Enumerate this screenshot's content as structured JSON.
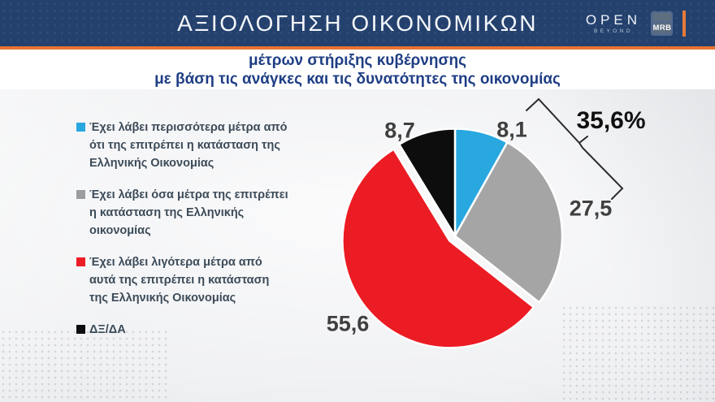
{
  "header": {
    "title": "ΑΞΙΟΛΟΓΗΣΗ ΟΙΚΟΝΟΜΙΚΩΝ",
    "open_logo": {
      "main": "OPEN",
      "sub": "BEYOND"
    },
    "mrb_logo": "MRB",
    "bar_color": "#24416e",
    "accent_orange": "#e87333"
  },
  "subtitle": {
    "line1": "μέτρων στήριξης κυβέρνησης",
    "line2": "με βάση τις ανάγκες και τις δυνατότητες της οικονομίας",
    "color": "#1f3e85"
  },
  "legend": {
    "items": [
      {
        "color": "#29a8e0",
        "lines": [
          "Έχει λάβει περισσότερα μέτρα από",
          "ότι της επιτρέπει η κατάσταση της",
          "Ελληνικής Οικονομίας"
        ]
      },
      {
        "color": "#9b9d9f",
        "lines": [
          "Έχει λάβει όσα μέτρα της επιτρέπει",
          "η κατάσταση της Ελληνικής",
          "οικονομίας"
        ]
      },
      {
        "color": "#ec1c24",
        "lines": [
          "Έχει λάβει λιγότερα μέτρα από",
          "αυτά της επιτρέπει η κατάσταση",
          "της Ελληνικής Οικονομίας"
        ]
      },
      {
        "color": "#0d0d0d",
        "lines": [
          "ΔΞ/ΔΑ",
          "",
          ""
        ]
      }
    ]
  },
  "chart_data": {
    "type": "pie",
    "title": "ΑΞΙΟΛΟΓΗΣΗ ΟΙΚΟΝΟΜΙΚΩΝ μέτρων στήριξης κυβέρνησης με βάση τις ανάγκες και τις δυνατότητες της οικονομίας",
    "unit": "%",
    "start_angle_deg": 0,
    "direction": "clockwise",
    "slices": [
      {
        "label": "Έχει λάβει περισσότερα μέτρα από ότι της επιτρέπει η κατάσταση της Ελληνικής Οικονομίας",
        "value": 8.1,
        "display": "8,1",
        "color": "#29a8e0",
        "exploded": false
      },
      {
        "label": "Έχει λάβει όσα μέτρα της επιτρέπει η κατάσταση της Ελληνικής οικονομίας",
        "value": 27.5,
        "display": "27,5",
        "color": "#a5a5a5",
        "exploded": false
      },
      {
        "label": "Έχει λάβει λιγότερα μέτρα από αυτά της επιτρέπει η κατάσταση της Ελληνικής Οικονομίας",
        "value": 55.6,
        "display": "55,6",
        "color": "#ec1c24",
        "exploded": true
      },
      {
        "label": "ΔΞ/ΔΑ",
        "value": 8.7,
        "display": "8,7",
        "color": "#0d0d0d",
        "exploded": false
      }
    ],
    "annotation": {
      "text": "35,6%",
      "meaning": "sum of slices 8,1 and 27,5 grouped by bracket"
    },
    "slice_border_color": "#ffffff"
  }
}
